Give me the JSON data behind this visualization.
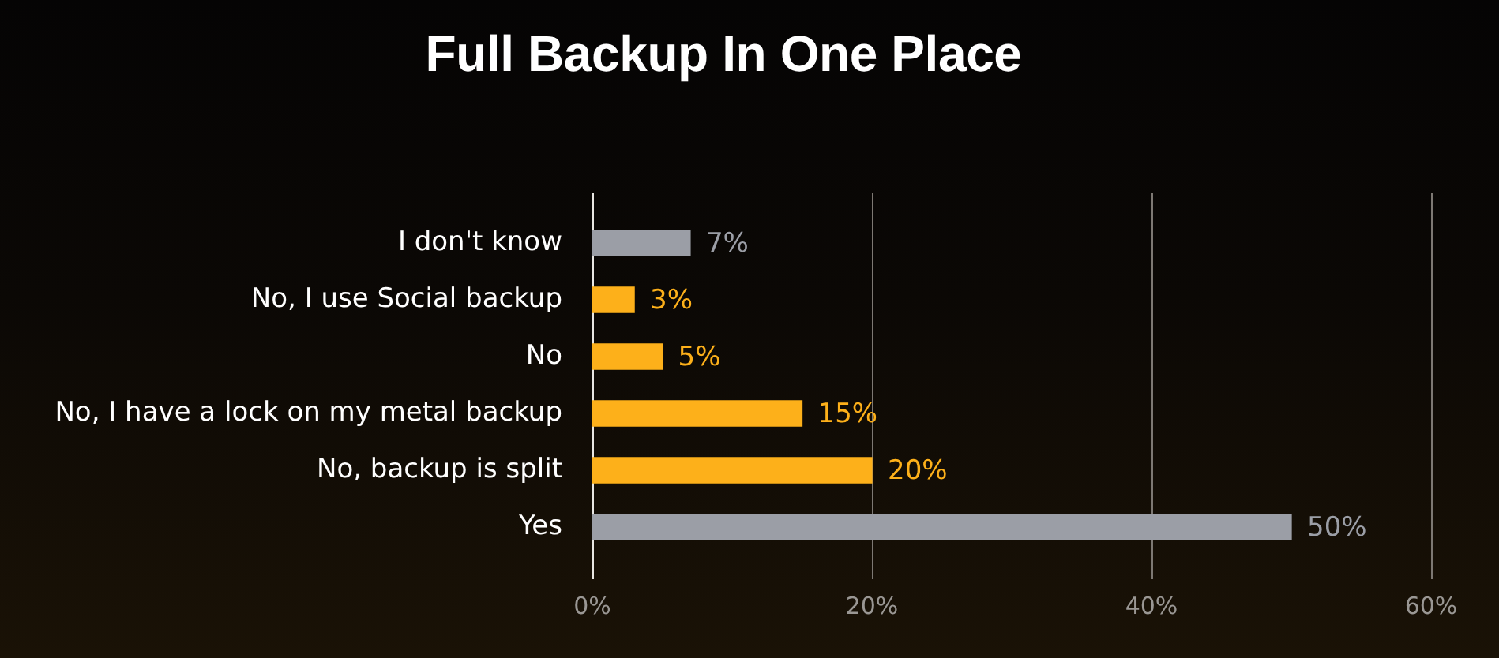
{
  "chart_data": {
    "type": "bar",
    "orientation": "horizontal",
    "title": "Full Backup In One Place",
    "categories": [
      "I don't know",
      "No, I use Social backup",
      "No",
      "No, I have a lock on my metal backup",
      "No, backup is split",
      "Yes"
    ],
    "values": [
      7,
      3,
      5,
      15,
      20,
      50
    ],
    "colors": [
      "#9b9ea6",
      "#fdb01a",
      "#fdb01a",
      "#fdb01a",
      "#fdb01a",
      "#9b9ea6"
    ],
    "value_labels": [
      "7%",
      "3%",
      "5%",
      "15%",
      "20%",
      "50%"
    ],
    "xlim": [
      0,
      60
    ],
    "xticks": [
      {
        "value": 0,
        "label": "0%"
      },
      {
        "value": 20,
        "label": "20%"
      },
      {
        "value": 40,
        "label": "40%"
      },
      {
        "value": 60,
        "label": "60%"
      }
    ],
    "grid": "x"
  }
}
